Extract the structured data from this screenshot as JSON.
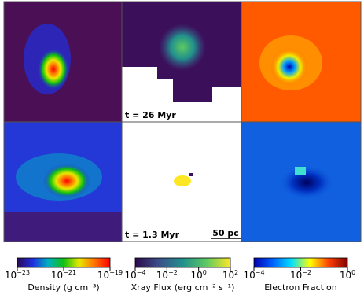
{
  "panels": {
    "top_middle": {
      "time": "t = 26 Myr"
    },
    "bottom_middle": {
      "time": "t = 1.3 Myr",
      "scale_bar": "50 pc"
    }
  },
  "colorbars": [
    {
      "label": "Density (g cm⁻³)",
      "log_scale": true,
      "lim": [
        1e-23,
        1e-19
      ],
      "colors": [
        "#2a0a55",
        "#1f2fe0",
        "#00b0c0",
        "#10c010",
        "#e8e800",
        "#ff7000",
        "#ff0000"
      ],
      "ticks": [
        {
          "value": 1e-23,
          "base": "10",
          "exponent": "−23"
        },
        {
          "value": 1e-21,
          "base": "10",
          "exponent": "−21"
        },
        {
          "value": 1e-19,
          "base": "10",
          "exponent": "−19"
        }
      ]
    },
    {
      "label": "Xray Flux (erg cm⁻² s⁻¹)",
      "log_scale": true,
      "lim": [
        0.0001,
        100.0
      ],
      "colors": [
        "#2c0a4a",
        "#3b4f8a",
        "#21908c",
        "#5ec962",
        "#fde725"
      ],
      "ticks": [
        {
          "value": 0.0001,
          "base": "10",
          "exponent": "−4"
        },
        {
          "value": 0.01,
          "base": "10",
          "exponent": "−2"
        },
        {
          "value": 1,
          "base": "10",
          "exponent": "0"
        },
        {
          "value": 100,
          "base": "10",
          "exponent": "2"
        }
      ]
    },
    {
      "label": "Electron Fraction",
      "log_scale": true,
      "lim": [
        0.0001,
        1
      ],
      "colors": [
        "#0000b0",
        "#0060ff",
        "#00e0ff",
        "#ffff00",
        "#ff4000",
        "#800000"
      ],
      "ticks": [
        {
          "value": 0.0001,
          "base": "10",
          "exponent": "−4"
        },
        {
          "value": 0.01,
          "base": "10",
          "exponent": "−2"
        },
        {
          "value": 1,
          "base": "10",
          "exponent": "0"
        }
      ]
    }
  ]
}
